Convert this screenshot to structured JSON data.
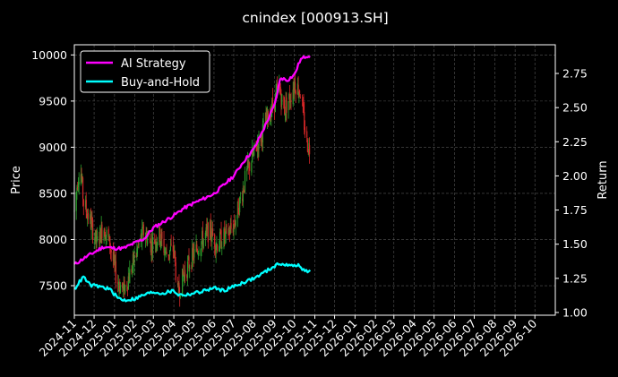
{
  "chart_data": {
    "type": "line",
    "title": "cnindex [000913.SH]",
    "ylabel_left": "Price",
    "ylabel_right": "Return",
    "ylim_left": [
      7180,
      10110
    ],
    "ylim_right": [
      0.98,
      2.96
    ],
    "yticks_left": [
      7500,
      8000,
      8500,
      9000,
      9500,
      10000
    ],
    "yticks_right": [
      1.0,
      1.25,
      1.5,
      1.75,
      2.0,
      2.25,
      2.5,
      2.75
    ],
    "ytick_labels_right": [
      "1.00",
      "1.25",
      "1.50",
      "1.75",
      "2.00",
      "2.25",
      "2.50",
      "2.75"
    ],
    "xlim": [
      "2024-11-01",
      "2026-11-01"
    ],
    "xtick_labels": [
      "2024-11",
      "2024-12",
      "2025-01",
      "2025-02",
      "2025-03",
      "2025-04",
      "2025-05",
      "2025-06",
      "2025-07",
      "2025-08",
      "2025-09",
      "2025-10",
      "2025-11",
      "2025-12",
      "2026-01",
      "2026-02",
      "2026-03",
      "2026-04",
      "2026-05",
      "2026-06",
      "2026-07",
      "2026-08",
      "2026-09",
      "2026-10"
    ],
    "grid": true,
    "legend_position": "top-left",
    "colors": {
      "up_candle": "#2ca02c",
      "down_candle": "#d62728",
      "ai_strategy": "#ff00ff",
      "buy_and_hold": "#00ffff",
      "background": "#000000",
      "grid": "#555555"
    },
    "series": [
      {
        "name": "AI Strategy",
        "axis": "right",
        "points": [
          [
            "2024-11-01",
            1.35
          ],
          [
            "2024-11-10",
            1.38
          ],
          [
            "2024-11-20",
            1.41
          ],
          [
            "2024-12-01",
            1.44
          ],
          [
            "2024-12-15",
            1.48
          ],
          [
            "2025-01-01",
            1.47
          ],
          [
            "2025-01-15",
            1.47
          ],
          [
            "2025-02-01",
            1.51
          ],
          [
            "2025-02-15",
            1.54
          ],
          [
            "2025-03-01",
            1.62
          ],
          [
            "2025-03-15",
            1.66
          ],
          [
            "2025-04-01",
            1.71
          ],
          [
            "2025-04-15",
            1.76
          ],
          [
            "2025-05-01",
            1.8
          ],
          [
            "2025-05-15",
            1.83
          ],
          [
            "2025-06-01",
            1.87
          ],
          [
            "2025-06-15",
            1.93
          ],
          [
            "2025-07-01",
            2.0
          ],
          [
            "2025-07-15",
            2.1
          ],
          [
            "2025-08-01",
            2.2
          ],
          [
            "2025-08-15",
            2.34
          ],
          [
            "2025-09-01",
            2.52
          ],
          [
            "2025-09-10",
            2.72
          ],
          [
            "2025-09-20",
            2.7
          ],
          [
            "2025-10-01",
            2.74
          ],
          [
            "2025-10-10",
            2.85
          ],
          [
            "2025-10-20",
            2.88
          ],
          [
            "2025-10-25",
            2.88
          ]
        ]
      },
      {
        "name": "Buy-and-Hold",
        "axis": "right",
        "points": [
          [
            "2024-11-01",
            1.17
          ],
          [
            "2024-11-08",
            1.22
          ],
          [
            "2024-11-15",
            1.26
          ],
          [
            "2024-11-25",
            1.2
          ],
          [
            "2024-12-10",
            1.19
          ],
          [
            "2024-12-25",
            1.17
          ],
          [
            "2025-01-05",
            1.11
          ],
          [
            "2025-01-15",
            1.09
          ],
          [
            "2025-02-01",
            1.1
          ],
          [
            "2025-02-15",
            1.13
          ],
          [
            "2025-03-01",
            1.15
          ],
          [
            "2025-03-15",
            1.14
          ],
          [
            "2025-04-01",
            1.16
          ],
          [
            "2025-04-08",
            1.13
          ],
          [
            "2025-04-20",
            1.13
          ],
          [
            "2025-05-10",
            1.15
          ],
          [
            "2025-06-01",
            1.18
          ],
          [
            "2025-06-15",
            1.16
          ],
          [
            "2025-07-01",
            1.19
          ],
          [
            "2025-07-15",
            1.22
          ],
          [
            "2025-08-01",
            1.25
          ],
          [
            "2025-08-15",
            1.29
          ],
          [
            "2025-09-01",
            1.34
          ],
          [
            "2025-09-10",
            1.36
          ],
          [
            "2025-09-25",
            1.34
          ],
          [
            "2025-10-05",
            1.35
          ],
          [
            "2025-10-15",
            1.31
          ],
          [
            "2025-10-25",
            1.3
          ]
        ]
      }
    ],
    "price_series": {
      "type": "candlestick",
      "axis": "left",
      "name": "",
      "close_points": [
        [
          "2024-11-01",
          8300
        ],
        [
          "2024-11-06",
          8650
        ],
        [
          "2024-11-10",
          8800
        ],
        [
          "2024-11-15",
          8400
        ],
        [
          "2024-11-25",
          8200
        ],
        [
          "2024-12-05",
          7950
        ],
        [
          "2024-12-15",
          8150
        ],
        [
          "2024-12-25",
          7950
        ],
        [
          "2025-01-05",
          7550
        ],
        [
          "2025-01-15",
          7450
        ],
        [
          "2025-01-25",
          7650
        ],
        [
          "2025-02-05",
          7900
        ],
        [
          "2025-02-15",
          8100
        ],
        [
          "2025-02-25",
          7950
        ],
        [
          "2025-03-10",
          8050
        ],
        [
          "2025-03-20",
          7850
        ],
        [
          "2025-04-01",
          7900
        ],
        [
          "2025-04-07",
          7400
        ],
        [
          "2025-04-15",
          7600
        ],
        [
          "2025-04-25",
          7750
        ],
        [
          "2025-05-10",
          7950
        ],
        [
          "2025-05-25",
          8100
        ],
        [
          "2025-06-05",
          7950
        ],
        [
          "2025-06-20",
          8050
        ],
        [
          "2025-07-01",
          8150
        ],
        [
          "2025-07-10",
          8400
        ],
        [
          "2025-07-20",
          8700
        ],
        [
          "2025-08-01",
          8950
        ],
        [
          "2025-08-10",
          9100
        ],
        [
          "2025-08-20",
          9300
        ],
        [
          "2025-09-01",
          9500
        ],
        [
          "2025-09-08",
          9650
        ],
        [
          "2025-09-15",
          9400
        ],
        [
          "2025-09-25",
          9550
        ],
        [
          "2025-10-01",
          9700
        ],
        [
          "2025-10-10",
          9600
        ],
        [
          "2025-10-15",
          9300
        ],
        [
          "2025-10-20",
          9050
        ],
        [
          "2025-10-25",
          8980
        ]
      ]
    }
  }
}
